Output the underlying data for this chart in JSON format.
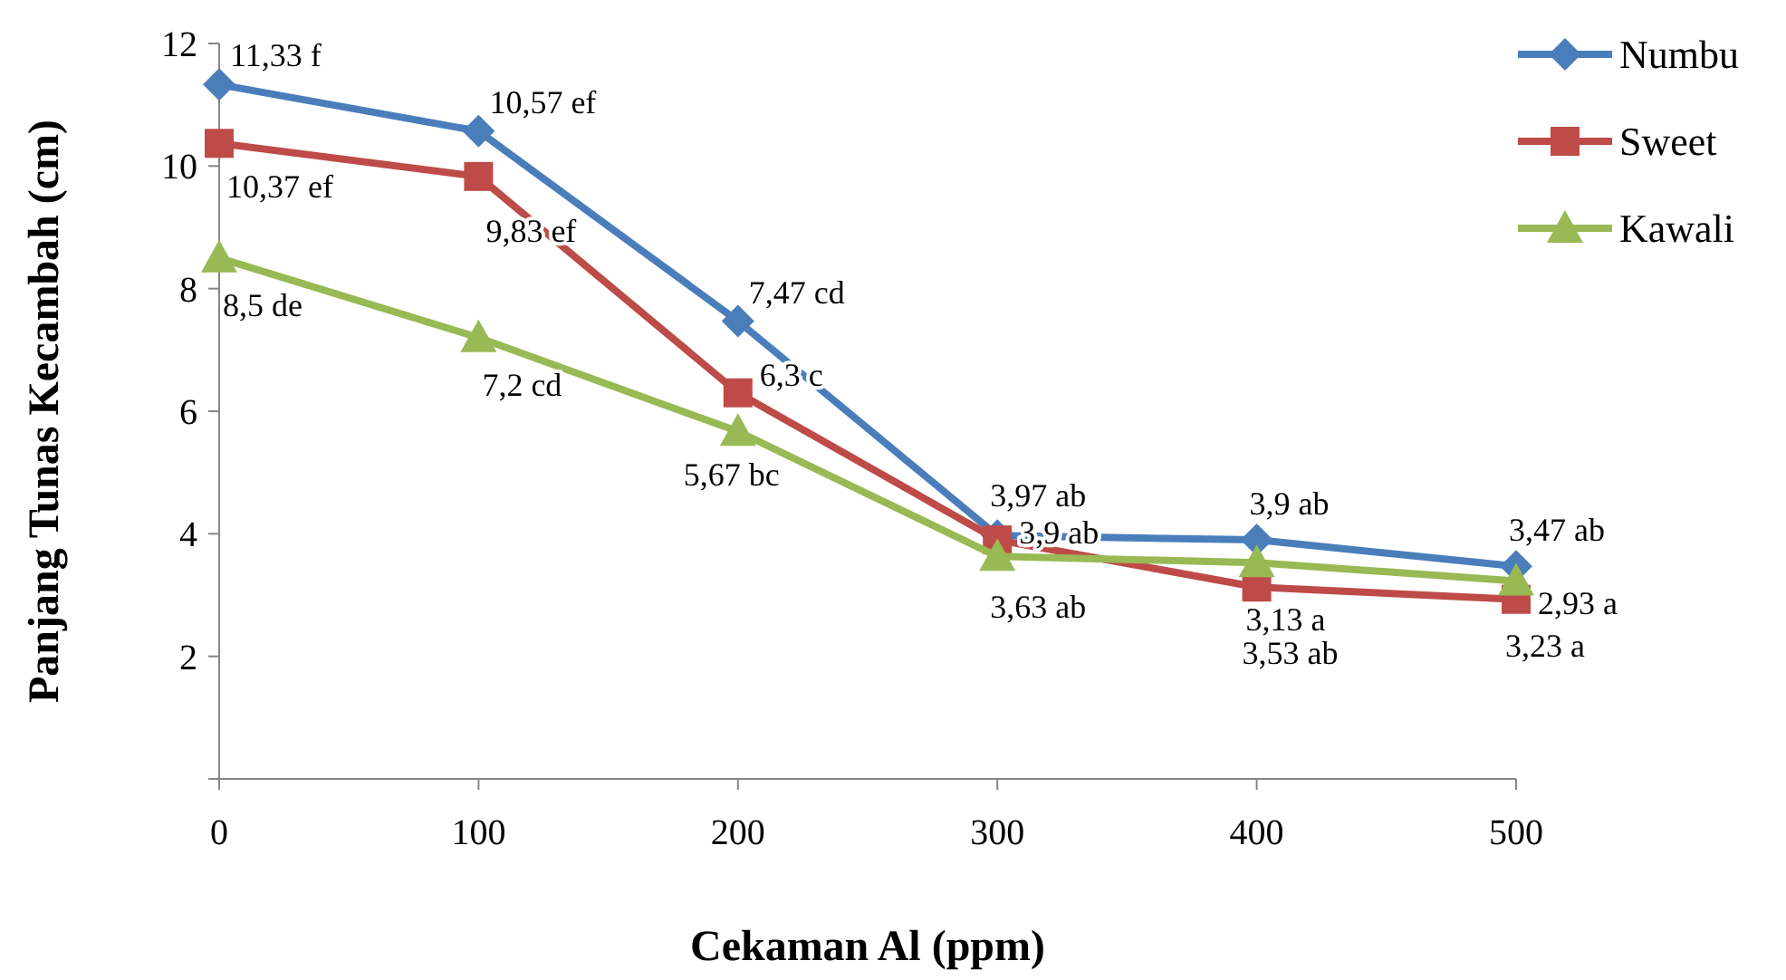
{
  "chart_data": {
    "type": "line",
    "xlabel": "Cekaman Al (ppm)",
    "ylabel": "Panjang Tunas Kecambah (cm)",
    "x": [
      0,
      100,
      200,
      300,
      400,
      500
    ],
    "xlim": [
      0,
      500
    ],
    "xticks": [
      0,
      100,
      200,
      300,
      400,
      500
    ],
    "ylim": [
      0,
      12
    ],
    "yticks": [
      {
        "value": 0,
        "label": null
      },
      2,
      4,
      6,
      8,
      10,
      12
    ],
    "grid": false,
    "legend": "top right",
    "line_style": "solid",
    "series": [
      {
        "name": "Numbu",
        "color": "#4a7ebb",
        "marker": "diamond",
        "values": [
          11.33,
          10.57,
          7.47,
          3.97,
          3.9,
          3.47
        ],
        "value_labels": [
          "11,33 f",
          "10,57 ef",
          "7,47 cd",
          "3,97 ab",
          "3,9 ab",
          "3,47 ab"
        ]
      },
      {
        "name": "Sweet",
        "color": "#be4b48",
        "marker": "square",
        "values": [
          10.37,
          9.83,
          6.3,
          3.9,
          3.13,
          2.93
        ],
        "value_labels": [
          "10,37 ef",
          "9,83 ef",
          "6,3 c",
          "3,9 ab",
          "3,13 a",
          "2,93 a"
        ]
      },
      {
        "name": "Kawali",
        "color": "#98b954",
        "marker": "triangle",
        "values": [
          8.5,
          7.2,
          5.67,
          3.63,
          3.53,
          3.23
        ],
        "value_labels": [
          "8,5 de",
          "7,2 cd",
          "5,67 bc",
          "3,63 ab",
          "3,53 ab",
          "3,23 a"
        ]
      }
    ]
  }
}
